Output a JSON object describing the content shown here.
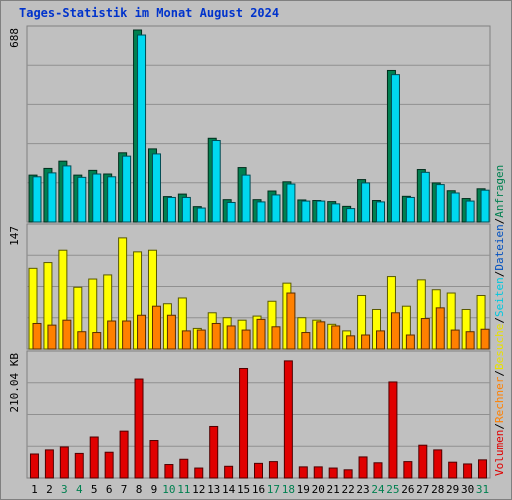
{
  "header": {
    "title": "Tages-Statistik im Monat August 2024"
  },
  "legend": {
    "items": [
      {
        "label": "Volumen",
        "color": "#e00000"
      },
      {
        "label": "/",
        "color": "#000000"
      },
      {
        "label": "Rechner",
        "color": "#ff8000"
      },
      {
        "label": "/",
        "color": "#000000"
      },
      {
        "label": "Besuche",
        "color": "#e8e000"
      },
      {
        "label": "/",
        "color": "#000000"
      },
      {
        "label": "Seiten",
        "color": "#00c8e0"
      },
      {
        "label": "/",
        "color": "#000000"
      },
      {
        "label": "Dateien",
        "color": "#0050c0"
      },
      {
        "label": "/",
        "color": "#000000"
      },
      {
        "label": "Anfragen",
        "color": "#008050"
      }
    ]
  },
  "chart_data": {
    "type": "bar",
    "categories": [
      "1",
      "2",
      "3",
      "4",
      "5",
      "6",
      "7",
      "8",
      "9",
      "10",
      "11",
      "12",
      "13",
      "14",
      "15",
      "16",
      "17",
      "18",
      "19",
      "20",
      "21",
      "22",
      "23",
      "24",
      "25",
      "26",
      "27",
      "28",
      "29",
      "30",
      "31"
    ],
    "weekend_days": [
      "3",
      "4",
      "10",
      "11",
      "17",
      "18",
      "24",
      "25",
      "31"
    ],
    "panels": [
      {
        "ymax_label": "688",
        "ymax": 688,
        "series": [
          {
            "name": "Anfragen",
            "color": "#008050",
            "values": [
              168,
              192,
              218,
              168,
              185,
              172,
              248,
              688,
              262,
              91,
              100,
              55,
              300,
              80,
              195,
              80,
              111,
              144,
              79,
              77,
              73,
              56,
              152,
              77,
              543,
              92,
              188,
              140,
              112,
              84,
              119
            ]
          },
          {
            "name": "Dateien",
            "color": "#00d8f0",
            "values": [
              162,
              176,
              201,
              160,
              172,
              162,
              236,
              670,
              244,
              88,
              88,
              50,
              292,
              70,
              168,
              72,
              97,
              136,
              75,
              75,
              65,
              48,
              140,
              72,
              528,
              88,
              178,
              134,
              104,
              75,
              114
            ]
          }
        ]
      },
      {
        "ymax_label": "147",
        "ymax": 147,
        "series": [
          {
            "name": "Besuche",
            "color": "#ffff00",
            "values": [
              98,
              105,
              120,
              75,
              85,
              90,
              135,
              118,
              120,
              55,
              62,
              25,
              44,
              38,
              35,
              40,
              58,
              80,
              38,
              35,
              30,
              22,
              65,
              48,
              88,
              52,
              84,
              72,
              68,
              48,
              65
            ]
          },
          {
            "name": "Rechner",
            "color": "#ff8000",
            "values": [
              31,
              29,
              35,
              21,
              20,
              34,
              34,
              41,
              52,
              41,
              22,
              23,
              31,
              28,
              23,
              36,
              27,
              68,
              20,
              33,
              28,
              16,
              17,
              22,
              44,
              17,
              37,
              50,
              23,
              21,
              24
            ]
          }
        ]
      },
      {
        "ymax_label": "210.04 KB",
        "ymax": 210.04,
        "series": [
          {
            "name": "Volumen",
            "color": "#e00000",
            "values": [
              41,
              48,
              53,
              42,
              70,
              44,
              80,
              169,
              64,
              23,
              32,
              17,
              88,
              20,
              187,
              25,
              28,
              200,
              19,
              19,
              17,
              14,
              36,
              26,
              164,
              28,
              56,
              48,
              27,
              24,
              31
            ]
          }
        ]
      }
    ]
  }
}
